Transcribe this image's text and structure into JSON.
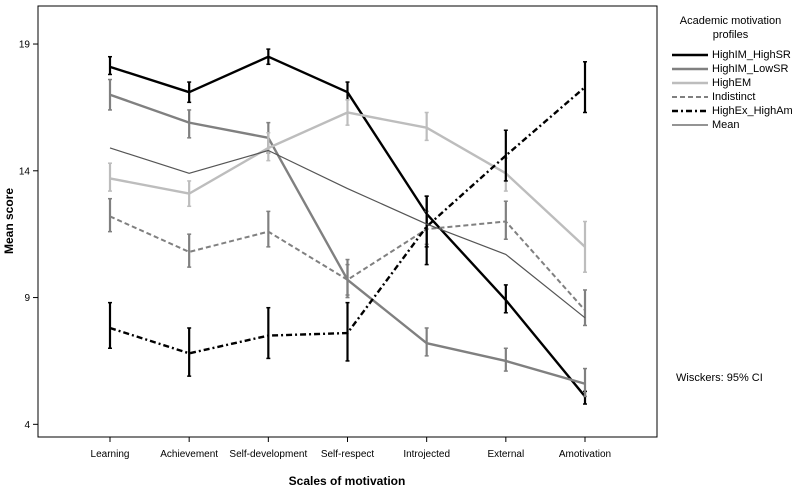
{
  "chart_data": {
    "type": "line",
    "categories": [
      "Learning",
      "Achievement",
      "Self-development",
      "Self-respect",
      "Introjected",
      "External",
      "Amotivation"
    ],
    "xlabel": "Scales of motivation",
    "ylabel": "Mean score",
    "ylim": [
      3.5,
      20.5
    ],
    "yticks": [
      4,
      9,
      14,
      19
    ],
    "grid": false,
    "legend": {
      "title": "Academic motivation profiles",
      "placement": "right"
    },
    "series": [
      {
        "name": "HighIM_HighSR",
        "color": "#000000",
        "width": 2.4,
        "dash": "",
        "values": [
          18.1,
          17.1,
          18.5,
          17.1,
          12.3,
          8.9,
          5.1
        ],
        "ci": [
          [
            17.8,
            18.5
          ],
          [
            16.7,
            17.5
          ],
          [
            18.2,
            18.8
          ],
          [
            16.8,
            17.5
          ],
          [
            11.0,
            13.0
          ],
          [
            8.4,
            9.5
          ],
          [
            4.8,
            5.3
          ]
        ]
      },
      {
        "name": "HighIM_LowSR",
        "color": "#808080",
        "width": 2.4,
        "dash": "",
        "values": [
          17.0,
          15.9,
          15.3,
          9.7,
          7.2,
          6.5,
          5.6
        ],
        "ci": [
          [
            16.4,
            17.6
          ],
          [
            15.3,
            16.4
          ],
          [
            14.7,
            15.9
          ],
          [
            9.1,
            10.3
          ],
          [
            6.7,
            7.8
          ],
          [
            6.1,
            7.0
          ],
          [
            5.1,
            6.2
          ]
        ]
      },
      {
        "name": "HighEM",
        "color": "#bdbdbd",
        "width": 2.4,
        "dash": "",
        "values": [
          13.7,
          13.1,
          14.9,
          16.3,
          15.7,
          13.9,
          11.0
        ],
        "ci": [
          [
            13.2,
            14.3
          ],
          [
            12.6,
            13.6
          ],
          [
            14.4,
            15.5
          ],
          [
            15.8,
            16.8
          ],
          [
            15.2,
            16.3
          ],
          [
            13.2,
            14.5
          ],
          [
            10.0,
            12.0
          ]
        ]
      },
      {
        "name": "Indistinct",
        "color": "#808080",
        "width": 2.0,
        "dash": "5,3",
        "values": [
          12.2,
          10.8,
          11.6,
          9.7,
          11.7,
          12.0,
          8.5
        ],
        "ci": [
          [
            11.6,
            12.9
          ],
          [
            10.2,
            11.5
          ],
          [
            11.0,
            12.4
          ],
          [
            9.0,
            10.5
          ],
          [
            11.1,
            12.4
          ],
          [
            11.3,
            12.8
          ],
          [
            7.9,
            9.3
          ]
        ]
      },
      {
        "name": "HighEx_HighAm",
        "color": "#000000",
        "width": 2.4,
        "dash": "6,3,2,3",
        "values": [
          7.8,
          6.8,
          7.5,
          7.6,
          11.8,
          14.6,
          17.3
        ],
        "ci": [
          [
            7.0,
            8.8
          ],
          [
            5.9,
            7.8
          ],
          [
            6.6,
            8.6
          ],
          [
            6.5,
            8.8
          ],
          [
            10.3,
            13.0
          ],
          [
            13.6,
            15.6
          ],
          [
            16.3,
            18.3
          ]
        ]
      },
      {
        "name": "Mean",
        "color": "#555555",
        "width": 1.2,
        "dash": "",
        "values": [
          14.9,
          13.9,
          14.8,
          13.3,
          11.9,
          10.7,
          8.2
        ]
      }
    ],
    "note": "Wisckers: 95% CI"
  }
}
